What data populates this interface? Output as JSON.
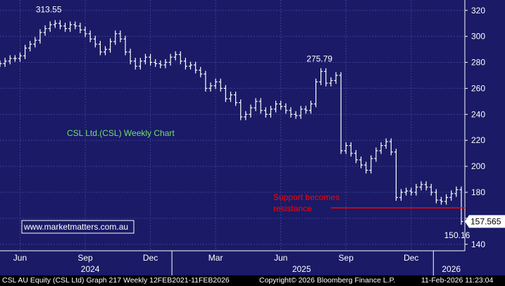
{
  "chart_data": {
    "type": "ohlc",
    "title": "CSL Ltd.(CSL) Weekly Chart",
    "watermark": "www.marketmatters.com.au",
    "colors": {
      "background": "#1a1a66",
      "grid": "#3e3e92",
      "bars": "#ffffff",
      "support_line": "#ff0000",
      "title": "#6fe06f",
      "price_tag_bg": "#ffffff"
    },
    "grid": true,
    "y_axis": {
      "position": "right",
      "min": 135,
      "max": 328,
      "ticks": [
        140,
        160,
        180,
        200,
        220,
        240,
        260,
        280,
        300,
        320
      ]
    },
    "x_axis": {
      "start": "2024-05-06",
      "end": "2026-02-11",
      "month_labels": [
        {
          "label": "Jun",
          "date": "2024-06-03"
        },
        {
          "label": "Sep",
          "date": "2024-09-02"
        },
        {
          "label": "Dec",
          "date": "2024-12-02"
        },
        {
          "label": "Mar",
          "date": "2025-03-03"
        },
        {
          "label": "Jun",
          "date": "2025-06-02"
        },
        {
          "label": "Sep",
          "date": "2025-09-01"
        },
        {
          "label": "Dec",
          "date": "2025-12-01"
        }
      ],
      "year_labels": [
        {
          "label": "2024",
          "date": "2024-09-09"
        },
        {
          "label": "2025",
          "date": "2025-07-01"
        },
        {
          "label": "2026",
          "date": "2026-01-26"
        }
      ],
      "year_separators": [
        "2025-01-01",
        "2026-01-01"
      ]
    },
    "series": [
      {
        "date": "2024-05-06",
        "close": 279
      },
      {
        "date": "2024-05-13",
        "close": 281
      },
      {
        "date": "2024-05-20",
        "close": 283
      },
      {
        "date": "2024-05-27",
        "close": 283
      },
      {
        "date": "2024-06-03",
        "close": 285
      },
      {
        "date": "2024-06-10",
        "close": 291
      },
      {
        "date": "2024-06-17",
        "close": 294
      },
      {
        "date": "2024-06-24",
        "close": 297
      },
      {
        "date": "2024-07-01",
        "close": 303
      },
      {
        "date": "2024-07-08",
        "close": 306
      },
      {
        "date": "2024-07-15",
        "close": 309
      },
      {
        "date": "2024-07-22",
        "close": 310
      },
      {
        "date": "2024-07-29",
        "close": 308
      },
      {
        "date": "2024-08-05",
        "close": 306
      },
      {
        "date": "2024-08-12",
        "close": 309
      },
      {
        "date": "2024-08-19",
        "close": 308
      },
      {
        "date": "2024-08-26",
        "close": 305
      },
      {
        "date": "2024-09-02",
        "close": 302
      },
      {
        "date": "2024-09-09",
        "close": 298
      },
      {
        "date": "2024-09-16",
        "close": 294
      },
      {
        "date": "2024-09-23",
        "close": 288
      },
      {
        "date": "2024-09-30",
        "close": 290
      },
      {
        "date": "2024-10-07",
        "close": 296
      },
      {
        "date": "2024-10-14",
        "close": 302
      },
      {
        "date": "2024-10-21",
        "close": 298
      },
      {
        "date": "2024-10-28",
        "close": 288
      },
      {
        "date": "2024-11-04",
        "close": 281
      },
      {
        "date": "2024-11-11",
        "close": 277
      },
      {
        "date": "2024-11-18",
        "close": 281
      },
      {
        "date": "2024-11-25",
        "close": 284
      },
      {
        "date": "2024-12-02",
        "close": 280
      },
      {
        "date": "2024-12-09",
        "close": 279
      },
      {
        "date": "2024-12-16",
        "close": 278
      },
      {
        "date": "2024-12-23",
        "close": 280
      },
      {
        "date": "2024-12-30",
        "close": 284
      },
      {
        "date": "2025-01-06",
        "close": 286
      },
      {
        "date": "2025-01-13",
        "close": 281
      },
      {
        "date": "2025-01-20",
        "close": 277
      },
      {
        "date": "2025-01-27",
        "close": 278
      },
      {
        "date": "2025-02-03",
        "close": 274
      },
      {
        "date": "2025-02-10",
        "close": 271
      },
      {
        "date": "2025-02-17",
        "close": 260
      },
      {
        "date": "2025-02-24",
        "close": 262
      },
      {
        "date": "2025-03-03",
        "close": 265
      },
      {
        "date": "2025-03-10",
        "close": 260
      },
      {
        "date": "2025-03-17",
        "close": 252
      },
      {
        "date": "2025-03-24",
        "close": 255
      },
      {
        "date": "2025-03-31",
        "close": 249
      },
      {
        "date": "2025-04-07",
        "close": 238
      },
      {
        "date": "2025-04-14",
        "close": 240
      },
      {
        "date": "2025-04-21",
        "close": 245
      },
      {
        "date": "2025-04-28",
        "close": 250
      },
      {
        "date": "2025-05-05",
        "close": 243
      },
      {
        "date": "2025-05-12",
        "close": 240
      },
      {
        "date": "2025-05-19",
        "close": 244
      },
      {
        "date": "2025-05-26",
        "close": 248
      },
      {
        "date": "2025-06-02",
        "close": 246
      },
      {
        "date": "2025-06-09",
        "close": 243
      },
      {
        "date": "2025-06-16",
        "close": 240
      },
      {
        "date": "2025-06-23",
        "close": 239
      },
      {
        "date": "2025-06-30",
        "close": 244
      },
      {
        "date": "2025-07-07",
        "close": 243
      },
      {
        "date": "2025-07-14",
        "close": 248
      },
      {
        "date": "2025-07-21",
        "close": 265
      },
      {
        "date": "2025-07-28",
        "close": 273
      },
      {
        "date": "2025-08-04",
        "close": 264
      },
      {
        "date": "2025-08-11",
        "close": 266
      },
      {
        "date": "2025-08-18",
        "close": 270
      },
      {
        "date": "2025-08-25",
        "close": 212
      },
      {
        "date": "2025-09-01",
        "close": 216
      },
      {
        "date": "2025-09-08",
        "close": 210
      },
      {
        "date": "2025-09-15",
        "close": 205
      },
      {
        "date": "2025-09-22",
        "close": 201
      },
      {
        "date": "2025-09-29",
        "close": 197
      },
      {
        "date": "2025-10-06",
        "close": 206
      },
      {
        "date": "2025-10-13",
        "close": 212
      },
      {
        "date": "2025-10-20",
        "close": 216
      },
      {
        "date": "2025-10-27",
        "close": 219
      },
      {
        "date": "2025-11-03",
        "close": 211
      },
      {
        "date": "2025-11-10",
        "close": 176
      },
      {
        "date": "2025-11-17",
        "close": 180
      },
      {
        "date": "2025-11-24",
        "close": 181
      },
      {
        "date": "2025-12-01",
        "close": 180
      },
      {
        "date": "2025-12-08",
        "close": 184
      },
      {
        "date": "2025-12-15",
        "close": 186
      },
      {
        "date": "2025-12-22",
        "close": 184
      },
      {
        "date": "2025-12-29",
        "close": 180
      },
      {
        "date": "2026-01-05",
        "close": 174
      },
      {
        "date": "2026-01-12",
        "close": 173
      },
      {
        "date": "2026-01-19",
        "close": 176
      },
      {
        "date": "2026-01-26",
        "close": 179
      },
      {
        "date": "2026-02-02",
        "close": 182
      },
      {
        "date": "2026-02-09",
        "close": 157.565
      }
    ],
    "annotations": [
      {
        "text": "313.55",
        "date": "2024-07-15",
        "value": 313.55
      },
      {
        "text": "275.79",
        "date": "2025-07-28",
        "value": 275.79
      },
      {
        "text": "150.16",
        "date": "2026-02-09",
        "value": 150.16
      }
    ],
    "support_line": {
      "value": 168,
      "from": "2025-08-11",
      "to": "2026-02-11",
      "label": "Support becomes resistance"
    },
    "last_price": {
      "text": "157.565",
      "value": 157.565
    }
  },
  "footer": {
    "left": "CSL AU Equity (CSL Ltd) Graph 217 Weekly 12FEB2021-11FEB2026",
    "center": "Copyright© 2026 Bloomberg Finance L.P.",
    "right": "11-Feb-2026 11:23:04"
  }
}
